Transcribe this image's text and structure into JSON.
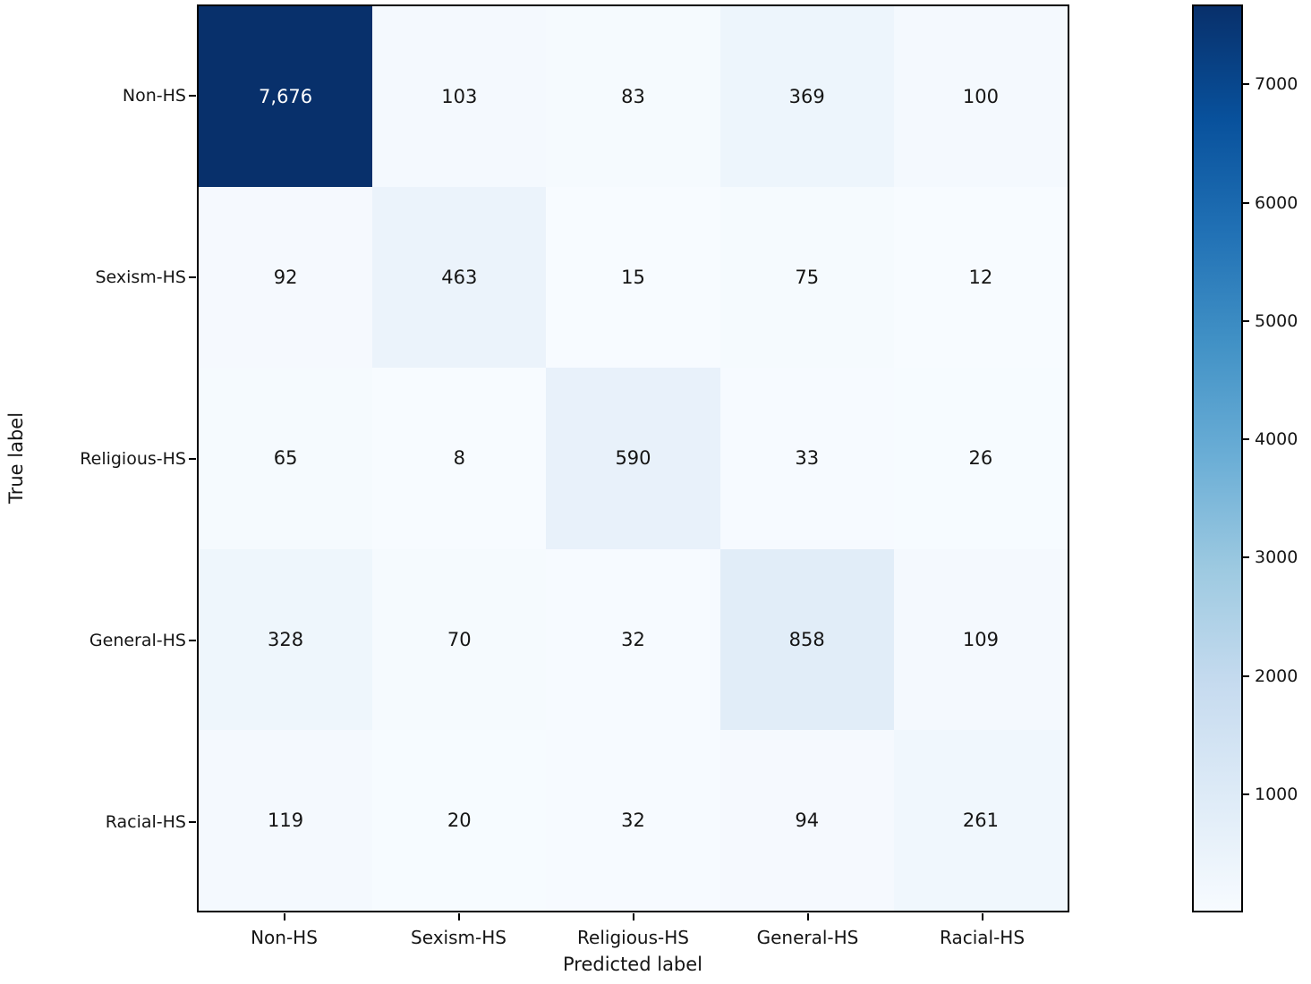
{
  "chart_data": {
    "type": "heatmap",
    "title": "",
    "xlabel": "Predicted label",
    "ylabel": "True label",
    "categories_x": [
      "Non-HS",
      "Sexism-HS",
      "Religious-HS",
      "General-HS",
      "Racial-HS"
    ],
    "categories_y": [
      "Non-HS",
      "Sexism-HS",
      "Religious-HS",
      "General-HS",
      "Racial-HS"
    ],
    "values": [
      [
        7676,
        103,
        83,
        369,
        100
      ],
      [
        92,
        463,
        15,
        75,
        12
      ],
      [
        65,
        8,
        590,
        33,
        26
      ],
      [
        328,
        70,
        32,
        858,
        109
      ],
      [
        119,
        20,
        32,
        94,
        261
      ]
    ],
    "display_values": [
      [
        "7,676",
        "103",
        "83",
        "369",
        "100"
      ],
      [
        "92",
        "463",
        "15",
        "75",
        "12"
      ],
      [
        "65",
        "8",
        "590",
        "33",
        "26"
      ],
      [
        "328",
        "70",
        "32",
        "858",
        "109"
      ],
      [
        "119",
        "20",
        "32",
        "94",
        "261"
      ]
    ],
    "vmin": 0,
    "vmax": 7676,
    "colormap": "Blues",
    "colormap_stops": [
      {
        "t": 0.0,
        "color": "#f7fbff"
      },
      {
        "t": 0.125,
        "color": "#deebf7"
      },
      {
        "t": 0.25,
        "color": "#c6dbef"
      },
      {
        "t": 0.375,
        "color": "#9ecae1"
      },
      {
        "t": 0.5,
        "color": "#6baed6"
      },
      {
        "t": 0.625,
        "color": "#4292c6"
      },
      {
        "t": 0.75,
        "color": "#2171b5"
      },
      {
        "t": 0.875,
        "color": "#08519c"
      },
      {
        "t": 1.0,
        "color": "#08306b"
      }
    ],
    "colorbar_ticks": [
      "1000",
      "2000",
      "3000",
      "4000",
      "5000",
      "6000",
      "7000"
    ],
    "dark_cell_text_color": "#ffffff",
    "light_cell_text_color": "#151515",
    "legend_position": "right-colorbar",
    "grid": false
  }
}
